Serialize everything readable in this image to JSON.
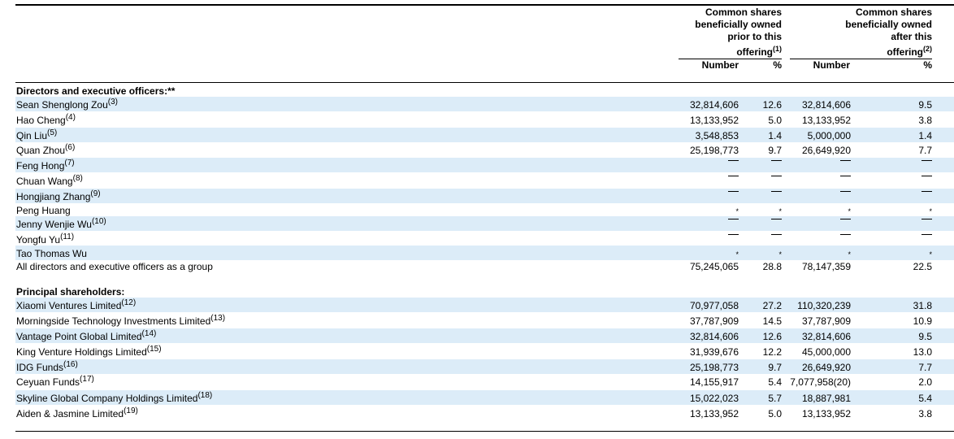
{
  "header": {
    "group_prior": {
      "line1": "Common shares",
      "line2": "beneficially owned",
      "line3": "prior to this",
      "line4": "offering",
      "note": "(1)"
    },
    "group_after": {
      "line1": "Common shares",
      "line2": "beneficially owned",
      "line3": "after this",
      "line4": "offering",
      "note": "(2)"
    },
    "col_number_prior": "Number",
    "col_pct_prior": "%",
    "col_number_after": "Number",
    "col_pct_after": "%"
  },
  "sections": {
    "directors": "Directors and executive officers:**",
    "principal": "Principal shareholders:"
  },
  "directors": [
    {
      "name": "Sean Shenglong Zou",
      "note": "(3)",
      "n1": "32,814,606",
      "p1": "12.6",
      "n2": "32,814,606",
      "p2": "9.5"
    },
    {
      "name": "Hao Cheng",
      "note": "(4)",
      "n1": "13,133,952",
      "p1": "5.0",
      "n2": "13,133,952",
      "p2": "3.8"
    },
    {
      "name": "Qin Liu",
      "note": "(5)",
      "n1": "3,548,853",
      "p1": "1.4",
      "n2": "5,000,000",
      "p2": "1.4"
    },
    {
      "name": "Quan Zhou",
      "note": "(6)",
      "n1": "25,198,773",
      "p1": "9.7",
      "n2": "26,649,920",
      "p2": "7.7"
    },
    {
      "name": "Feng Hong",
      "note": "(7)",
      "n1": "—",
      "p1": "—",
      "n2": "—",
      "p2": "—"
    },
    {
      "name": "Chuan Wang",
      "note": "(8)",
      "n1": "—",
      "p1": "—",
      "n2": "—",
      "p2": "—"
    },
    {
      "name": "Hongjiang Zhang",
      "note": "(9)",
      "n1": "—",
      "p1": "—",
      "n2": "—",
      "p2": "—"
    },
    {
      "name": "Peng Huang",
      "note": "",
      "n1": "*",
      "p1": "*",
      "n2": "*",
      "p2": "*"
    },
    {
      "name": "Jenny Wenjie Wu",
      "note": "(10)",
      "n1": "—",
      "p1": "—",
      "n2": "—",
      "p2": "—"
    },
    {
      "name": "Yongfu Yu",
      "note": "(11)",
      "n1": "—",
      "p1": "—",
      "n2": "—",
      "p2": "—"
    },
    {
      "name": "Tao Thomas Wu",
      "note": "",
      "n1": "*",
      "p1": "*",
      "n2": "*",
      "p2": "*"
    },
    {
      "name": "All directors and executive officers as a group",
      "note": "",
      "n1": "75,245,065",
      "p1": "28.8",
      "n2": "78,147,359",
      "p2": "22.5"
    }
  ],
  "principals": [
    {
      "name": "Xiaomi Ventures Limited",
      "note": "(12)",
      "n1": "70,977,058",
      "p1": "27.2",
      "n2": "110,320,239",
      "n2note": "",
      "p2": "31.8"
    },
    {
      "name": "Morningside Technology Investments Limited",
      "note": "(13)",
      "n1": "37,787,909",
      "p1": "14.5",
      "n2": "37,787,909",
      "n2note": "",
      "p2": "10.9"
    },
    {
      "name": "Vantage Point Global Limited",
      "note": "(14)",
      "n1": "32,814,606",
      "p1": "12.6",
      "n2": "32,814,606",
      "n2note": "",
      "p2": "9.5"
    },
    {
      "name": "King Venture Holdings Limited",
      "note": "(15)",
      "n1": "31,939,676",
      "p1": "12.2",
      "n2": "45,000,000",
      "n2note": "",
      "p2": "13.0"
    },
    {
      "name": "IDG Funds",
      "note": "(16)",
      "n1": "25,198,773",
      "p1": "9.7",
      "n2": "26,649,920",
      "n2note": "",
      "p2": "7.7"
    },
    {
      "name": "Ceyuan Funds",
      "note": "(17)",
      "n1": "14,155,917",
      "p1": "5.4",
      "n2": "7,077,958",
      "n2note": "(20)",
      "p2": "2.0"
    },
    {
      "name": "Skyline Global Company Holdings Limited",
      "note": "(18)",
      "n1": "15,022,023",
      "p1": "5.7",
      "n2": "18,887,981",
      "n2note": "",
      "p2": "5.4"
    },
    {
      "name": "Aiden & Jasmine Limited",
      "note": "(19)",
      "n1": "13,133,952",
      "p1": "5.0",
      "n2": "13,133,952",
      "n2note": "",
      "p2": "3.8"
    }
  ]
}
